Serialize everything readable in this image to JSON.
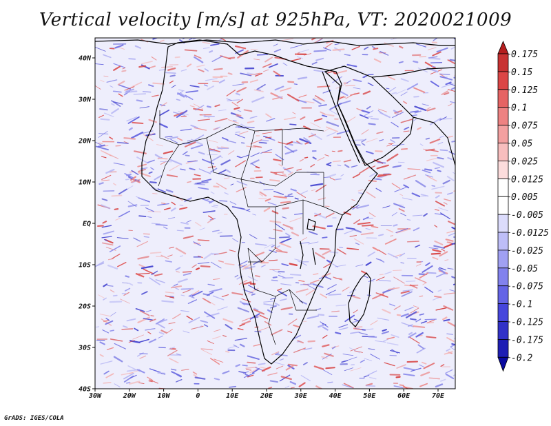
{
  "title": "Vertical velocity [m/s] at 925hPa, VT: 2020021009",
  "credit": "GrADS: IGES/COLA",
  "map": {
    "lon_range": [
      -30,
      75
    ],
    "lat_range": [
      -40,
      45
    ],
    "lat_ticks": [
      "40N",
      "30N",
      "20N",
      "10N",
      "EQ",
      "10S",
      "20S",
      "30S",
      "40S"
    ],
    "lon_ticks": [
      "30W",
      "20W",
      "10W",
      "0",
      "10E",
      "20E",
      "30E",
      "40E",
      "50E",
      "60E",
      "70E"
    ]
  },
  "colorbar": {
    "labels": [
      "0.175",
      "0.15",
      "0.125",
      "0.1",
      "0.075",
      "0.05",
      "0.025",
      "0.0125",
      "0.005",
      "-0.005",
      "-0.0125",
      "-0.025",
      "-0.05",
      "-0.075",
      "-0.1",
      "-0.125",
      "-0.175",
      "-0.2"
    ],
    "colors": [
      "#b41e1e",
      "#c83232",
      "#dc4646",
      "#e66464",
      "#ee8282",
      "#f3a0a0",
      "#f8bebe",
      "#fcdcdc",
      "#ffffff",
      "#ffffff",
      "#dcdcfc",
      "#bebef8",
      "#a0a0f3",
      "#8282ee",
      "#6464e6",
      "#4646dc",
      "#3232c8",
      "#1e1eb4",
      "#0a0aa0"
    ]
  },
  "colors": {
    "land_outline": "#000000",
    "positive": "#e05050",
    "negative": "#5a5ad8"
  }
}
